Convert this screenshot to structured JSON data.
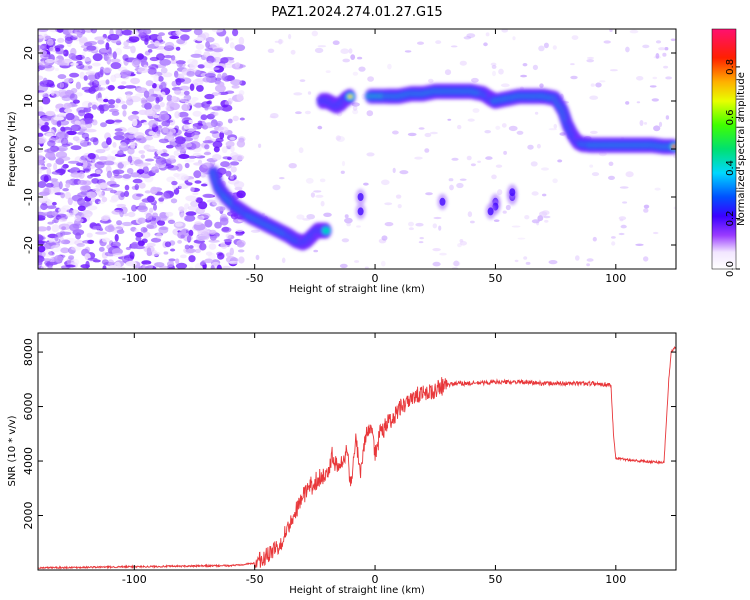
{
  "title": "PAZ1.2024.274.01.27.G15",
  "chart_data": [
    {
      "type": "heatmap",
      "title": "PAZ1.2024.274.01.27.G15",
      "xlabel": "Height of straight line (km)",
      "ylabel": "Frequency (Hz)",
      "xlim": [
        -140,
        125
      ],
      "ylim": [
        -25,
        25
      ],
      "xticks": [
        -100,
        -50,
        0,
        50,
        100
      ],
      "xtick_labels": [
        "-100",
        "-50",
        "0",
        "50",
        "100"
      ],
      "yticks": [
        -20,
        -10,
        0,
        10,
        20
      ],
      "ytick_labels": [
        "-20",
        "-10",
        "0",
        "10",
        "20"
      ],
      "colorbar": {
        "label": "Normalized spectral amplitude",
        "range": [
          0,
          0.95
        ],
        "ticks": [
          0.0,
          0.2,
          0.4,
          0.6,
          0.8
        ],
        "tick_labels": [
          "0.0",
          "0.2",
          "0.4",
          "0.6",
          "0.8"
        ]
      },
      "ridge": {
        "x": [
          -67,
          -65,
          -62,
          -58,
          -55,
          -52,
          -48,
          -44,
          -40,
          -36,
          -33,
          -30,
          -28,
          -26,
          -24,
          -22,
          -20
        ],
        "y": [
          -5,
          -8,
          -10,
          -12,
          -13,
          -14,
          -15,
          -16,
          -17,
          -18,
          -19,
          -19.5,
          -19,
          -18,
          -17,
          -17,
          -17
        ]
      },
      "ridge2": {
        "x": [
          -22,
          -20,
          -18,
          -16,
          -14,
          -12,
          -10
        ],
        "y": [
          10,
          10,
          9.5,
          9,
          9.5,
          10.5,
          11
        ]
      },
      "ridge3": {
        "x": [
          -2,
          5,
          10,
          15,
          20,
          25,
          30,
          35,
          40,
          45,
          48,
          50,
          55,
          60,
          65,
          70,
          75,
          78,
          80,
          82,
          84,
          86,
          90,
          95,
          100,
          105,
          110,
          115,
          120,
          125
        ],
        "y": [
          11,
          11,
          11,
          11.5,
          11.5,
          12,
          12,
          12,
          12,
          11.5,
          10.5,
          10,
          10.5,
          11,
          11,
          11,
          10.5,
          8,
          5,
          3,
          1.5,
          1,
          0.8,
          0.8,
          0.8,
          0.8,
          0.8,
          0.8,
          0.5,
          0.5
        ]
      },
      "side_blobs": {
        "x": [
          -6,
          -6,
          50,
          50,
          57,
          57,
          28,
          48
        ],
        "y": [
          -10,
          -13,
          -11,
          -12,
          -10,
          -9,
          -11,
          -13
        ]
      }
    },
    {
      "type": "line",
      "xlabel": "Height of straight line (km)",
      "ylabel": "SNR (10 * v/v)",
      "xlim": [
        -140,
        125
      ],
      "ylim": [
        0,
        8700
      ],
      "xticks": [
        -100,
        -50,
        0,
        50,
        100
      ],
      "xtick_labels": [
        "-100",
        "-50",
        "0",
        "50",
        "100"
      ],
      "yticks": [
        2000,
        4000,
        6000,
        8000
      ],
      "ytick_labels": [
        "2000",
        "4000",
        "6000",
        "8000"
      ],
      "color": "#e8373a",
      "series": [
        {
          "x": [
            -140,
            -120,
            -100,
            -80,
            -60,
            -50,
            -45,
            -40,
            -36,
            -33,
            -30,
            -27,
            -24,
            -20,
            -18,
            -15,
            -12,
            -10,
            -8,
            -6,
            -4,
            -2,
            -1,
            0,
            2,
            5,
            8,
            10,
            15,
            20,
            25,
            30,
            35,
            40,
            50,
            60,
            70,
            80,
            90,
            98,
            99,
            100,
            110,
            120,
            122,
            123,
            125
          ],
          "y": [
            80,
            100,
            120,
            140,
            160,
            250,
            500,
            900,
            1600,
            2200,
            2700,
            3100,
            3300,
            3500,
            4200,
            3800,
            4400,
            3200,
            4800,
            3700,
            4900,
            5300,
            5200,
            4300,
            5000,
            5400,
            5600,
            5900,
            6200,
            6500,
            6600,
            6800,
            6850,
            6850,
            6900,
            6900,
            6850,
            6850,
            6850,
            6800,
            5000,
            4100,
            4000,
            3950,
            7000,
            8000,
            8200
          ]
        }
      ]
    }
  ]
}
